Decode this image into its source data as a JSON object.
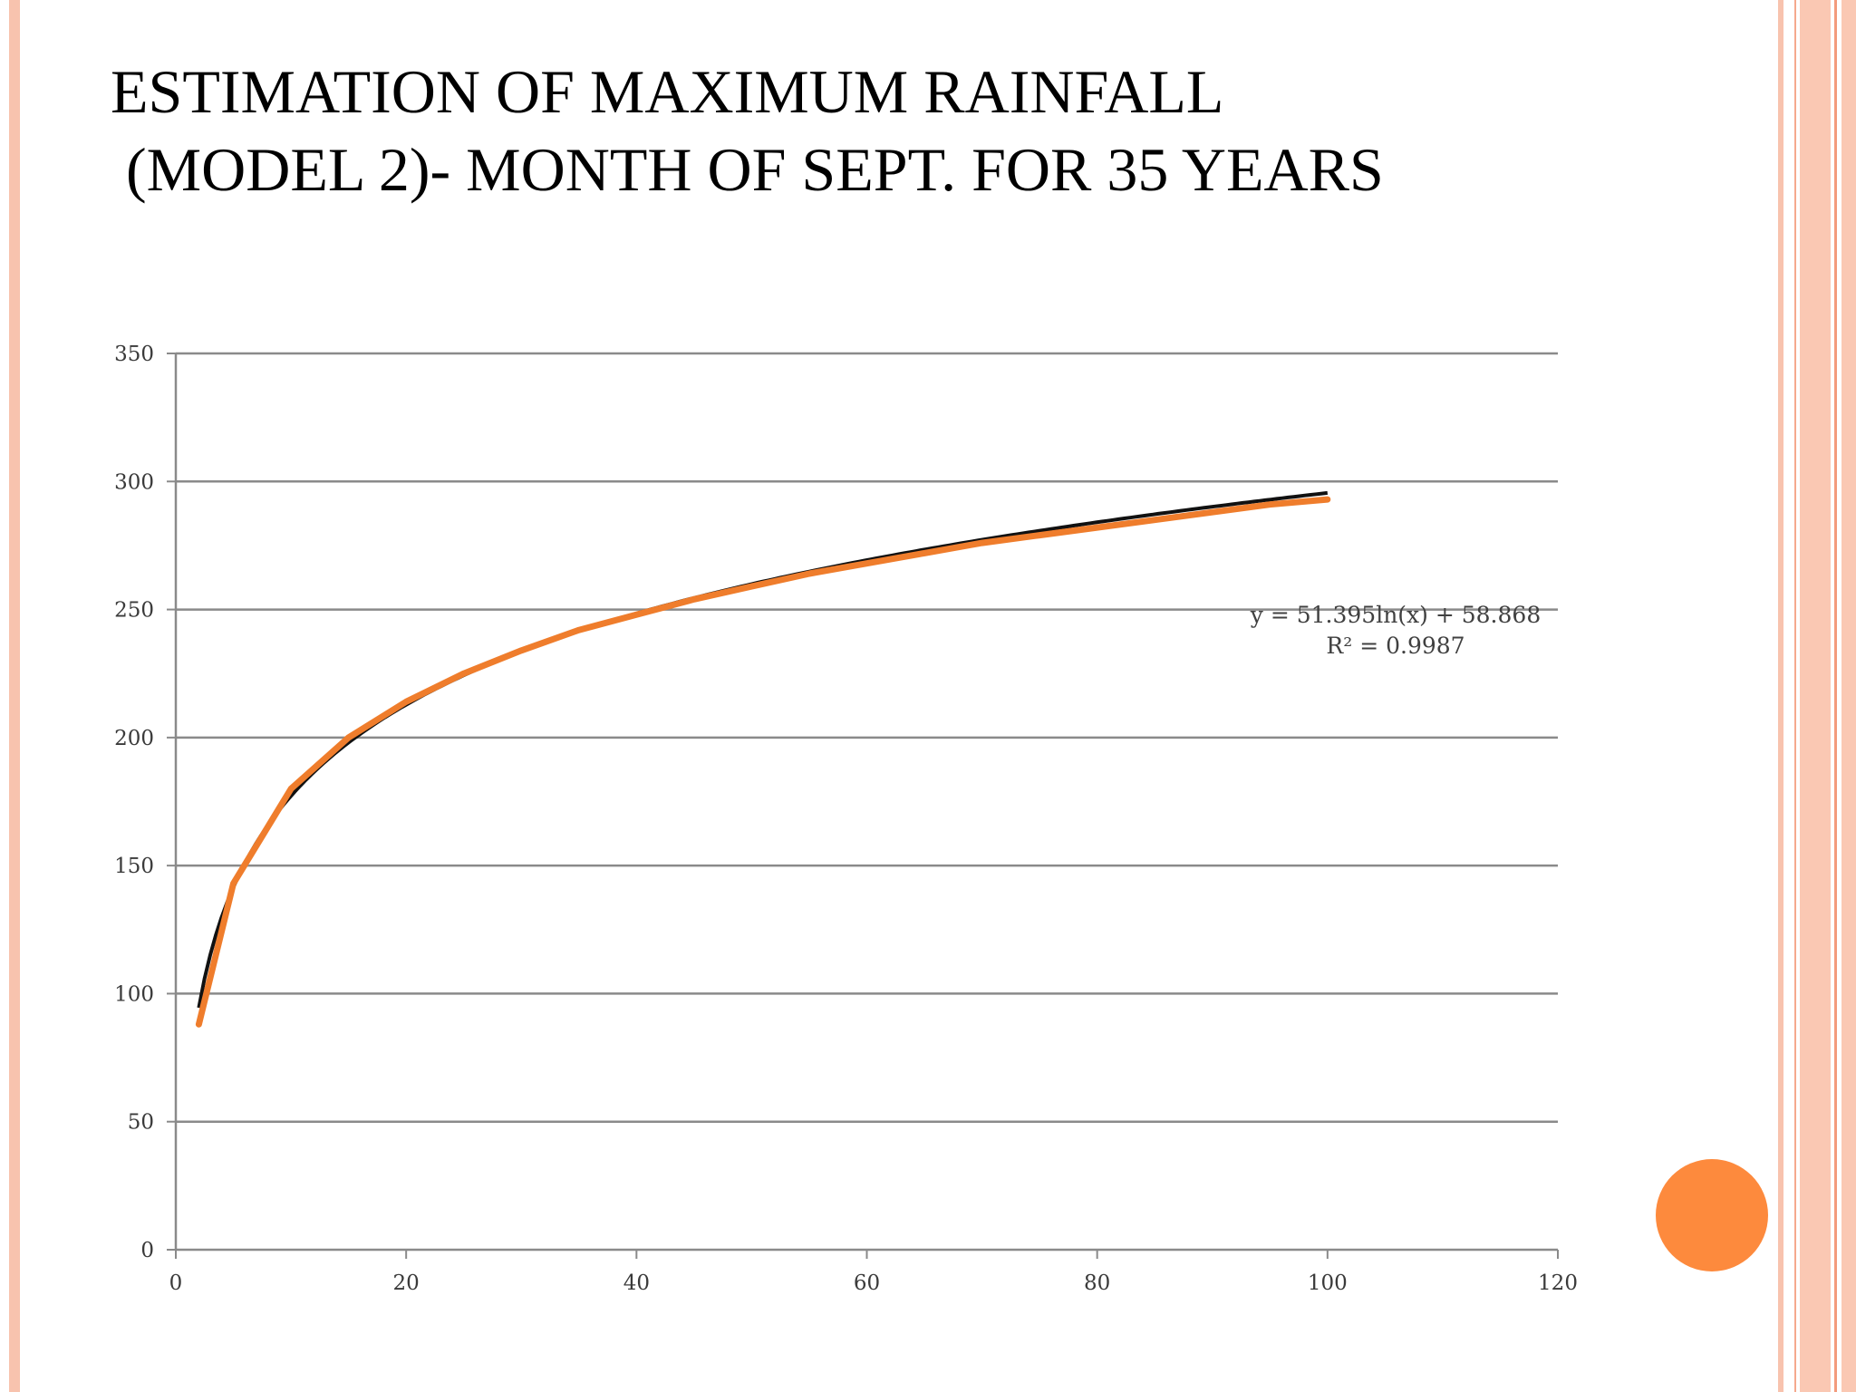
{
  "slide": {
    "title_line1": "ESTIMATION OF MAXIMUM RAINFALL",
    "title_line2": " (MODEL 2)- MONTH OF SEPT. FOR 35 YEARS",
    "colors": {
      "accent_stripe": "#f8c3ae",
      "accent_dot": "#fd8a3d"
    }
  },
  "chart_data": {
    "type": "line",
    "title": "",
    "xlabel": "",
    "ylabel": "",
    "xlim": [
      0,
      120
    ],
    "ylim": [
      0,
      350
    ],
    "x_ticks": [
      0,
      20,
      40,
      60,
      80,
      100,
      120
    ],
    "y_ticks": [
      0,
      50,
      100,
      150,
      200,
      250,
      300,
      350
    ],
    "grid": {
      "horizontal": true,
      "vertical": false
    },
    "series": [
      {
        "color": "#ef7d2c",
        "x": [
          2,
          5,
          10,
          15,
          20,
          25,
          30,
          35,
          40,
          45,
          50,
          55,
          60,
          65,
          70,
          75,
          80,
          85,
          90,
          95,
          100
        ],
        "y": [
          88,
          143,
          180,
          200,
          214,
          225,
          234,
          242,
          248,
          254,
          259,
          264,
          268,
          272,
          276,
          279,
          282,
          285,
          288,
          291,
          293
        ]
      }
    ],
    "trendline": {
      "type": "logarithmic",
      "color": "#111111",
      "a": 51.395,
      "b": 58.868,
      "x_range": [
        2,
        100
      ],
      "equation_label": "y = 51.395ln(x) + 58.868",
      "r2_label": "R² = 0.9987"
    }
  }
}
